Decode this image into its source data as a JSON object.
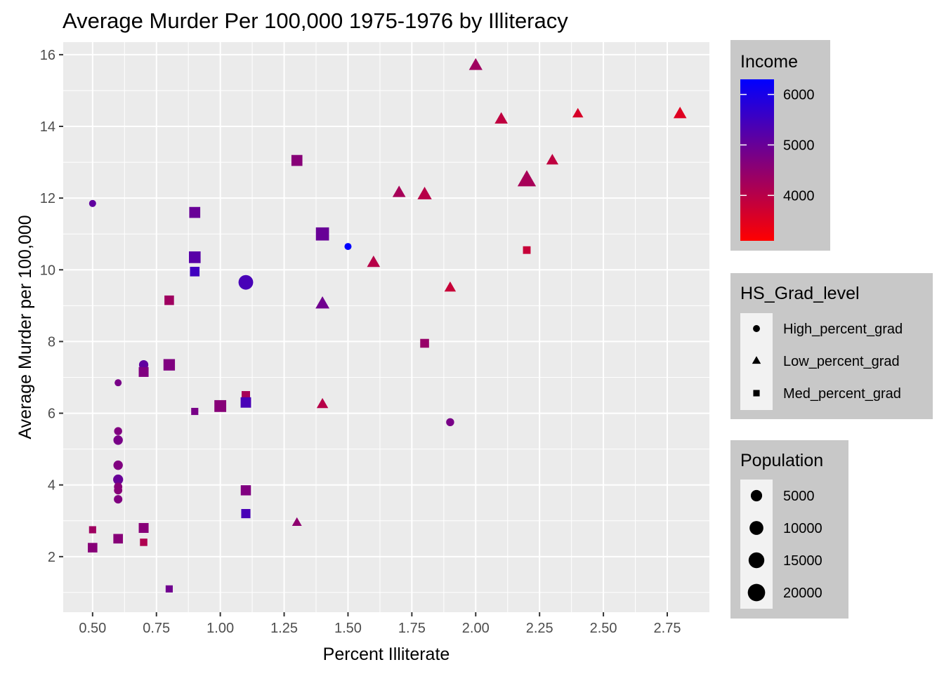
{
  "chart_data": {
    "type": "scatter",
    "title": "Average Murder Per 100,000 1975-1976 by Illiteracy",
    "xlabel": "Percent Illiterate",
    "ylabel": "Average Murder per 100,000",
    "xlim": [
      0.385,
      2.915
    ],
    "ylim": [
      0.45,
      16.35
    ],
    "x_ticks": [
      0.5,
      0.75,
      1.0,
      1.25,
      1.5,
      1.75,
      2.0,
      2.25,
      2.5,
      2.75
    ],
    "x_tick_labels": [
      "0.50",
      "0.75",
      "1.00",
      "1.25",
      "1.50",
      "1.75",
      "2.00",
      "2.25",
      "2.50",
      "2.75"
    ],
    "y_ticks": [
      2,
      4,
      6,
      8,
      10,
      12,
      14,
      16
    ],
    "y_tick_labels": [
      "2",
      "4",
      "6",
      "8",
      "10",
      "12",
      "14",
      "16"
    ],
    "grid": true,
    "legends": {
      "income": {
        "title": "Income",
        "low_color": "#ff0000",
        "high_color": "#0000ff",
        "range": [
          3100,
          6300
        ],
        "ticks": [
          4000,
          5000,
          6000
        ],
        "tick_labels": [
          "4000",
          "5000",
          "6000"
        ]
      },
      "shape": {
        "title": "HS_Grad_level",
        "entries": [
          {
            "label": "High_percent_grad",
            "shape": "circle"
          },
          {
            "label": "Low_percent_grad",
            "shape": "triangle"
          },
          {
            "label": "Med_percent_grad",
            "shape": "square"
          }
        ]
      },
      "size": {
        "title": "Population",
        "entries": [
          {
            "label": "5000",
            "value": 5000
          },
          {
            "label": "10000",
            "value": 10000
          },
          {
            "label": "15000",
            "value": 15000
          },
          {
            "label": "20000",
            "value": 20000
          }
        ]
      }
    },
    "points": [
      {
        "x": 0.5,
        "y": 11.85,
        "shape": "circle",
        "income": 5100,
        "population": 400
      },
      {
        "x": 0.5,
        "y": 2.75,
        "shape": "square",
        "income": 4300,
        "population": 800
      },
      {
        "x": 0.5,
        "y": 2.25,
        "shape": "square",
        "income": 4600,
        "population": 3500
      },
      {
        "x": 0.6,
        "y": 6.85,
        "shape": "circle",
        "income": 4800,
        "population": 400
      },
      {
        "x": 0.6,
        "y": 5.5,
        "shape": "circle",
        "income": 4700,
        "population": 1000
      },
      {
        "x": 0.6,
        "y": 5.25,
        "shape": "circle",
        "income": 4800,
        "population": 2300
      },
      {
        "x": 0.6,
        "y": 4.55,
        "shape": "circle",
        "income": 4700,
        "population": 2300
      },
      {
        "x": 0.6,
        "y": 4.15,
        "shape": "circle",
        "income": 5000,
        "population": 3000
      },
      {
        "x": 0.6,
        "y": 3.95,
        "shape": "circle",
        "income": 4600,
        "population": 1200
      },
      {
        "x": 0.6,
        "y": 3.85,
        "shape": "circle",
        "income": 4600,
        "population": 1200
      },
      {
        "x": 0.6,
        "y": 3.6,
        "shape": "circle",
        "income": 4700,
        "population": 1400
      },
      {
        "x": 0.6,
        "y": 2.5,
        "shape": "square",
        "income": 4600,
        "population": 3500
      },
      {
        "x": 0.7,
        "y": 7.35,
        "shape": "circle",
        "income": 5100,
        "population": 2200
      },
      {
        "x": 0.7,
        "y": 7.15,
        "shape": "square",
        "income": 4700,
        "population": 4000
      },
      {
        "x": 0.7,
        "y": 2.8,
        "shape": "square",
        "income": 4600,
        "population": 4000
      },
      {
        "x": 0.7,
        "y": 2.4,
        "shape": "square",
        "income": 4100,
        "population": 1000
      },
      {
        "x": 0.8,
        "y": 9.15,
        "shape": "square",
        "income": 4300,
        "population": 3500
      },
      {
        "x": 0.8,
        "y": 7.35,
        "shape": "square",
        "income": 4700,
        "population": 7000
      },
      {
        "x": 0.8,
        "y": 1.1,
        "shape": "square",
        "income": 4900,
        "population": 800
      },
      {
        "x": 0.9,
        "y": 11.6,
        "shape": "square",
        "income": 5000,
        "population": 6000
      },
      {
        "x": 0.9,
        "y": 10.35,
        "shape": "square",
        "income": 5200,
        "population": 7500
      },
      {
        "x": 0.9,
        "y": 9.95,
        "shape": "square",
        "income": 5500,
        "population": 3500
      },
      {
        "x": 0.9,
        "y": 6.05,
        "shape": "square",
        "income": 4800,
        "population": 800
      },
      {
        "x": 1.0,
        "y": 6.2,
        "shape": "square",
        "income": 4600,
        "population": 7800
      },
      {
        "x": 1.1,
        "y": 9.65,
        "shape": "circle",
        "income": 5400,
        "population": 12000
      },
      {
        "x": 1.1,
        "y": 6.5,
        "shape": "square",
        "income": 4200,
        "population": 2000
      },
      {
        "x": 1.1,
        "y": 6.3,
        "shape": "square",
        "income": 5400,
        "population": 5000
      },
      {
        "x": 1.1,
        "y": 3.85,
        "shape": "square",
        "income": 4700,
        "population": 4500
      },
      {
        "x": 1.1,
        "y": 3.2,
        "shape": "square",
        "income": 5400,
        "population": 3000
      },
      {
        "x": 1.3,
        "y": 13.05,
        "shape": "square",
        "income": 4600,
        "population": 6000
      },
      {
        "x": 1.3,
        "y": 2.95,
        "shape": "triangle",
        "income": 4500,
        "population": 800
      },
      {
        "x": 1.4,
        "y": 11.0,
        "shape": "square",
        "income": 5000,
        "population": 11000
      },
      {
        "x": 1.4,
        "y": 9.05,
        "shape": "triangle",
        "income": 4900,
        "population": 4500
      },
      {
        "x": 1.4,
        "y": 6.25,
        "shape": "triangle",
        "income": 4000,
        "population": 2000
      },
      {
        "x": 1.5,
        "y": 10.65,
        "shape": "circle",
        "income": 6300,
        "population": 400
      },
      {
        "x": 1.6,
        "y": 10.2,
        "shape": "triangle",
        "income": 4000,
        "population": 3500
      },
      {
        "x": 1.7,
        "y": 12.15,
        "shape": "triangle",
        "income": 4200,
        "population": 3500
      },
      {
        "x": 1.8,
        "y": 12.1,
        "shape": "triangle",
        "income": 4000,
        "population": 5000
      },
      {
        "x": 1.8,
        "y": 7.95,
        "shape": "square",
        "income": 4400,
        "population": 2500
      },
      {
        "x": 1.9,
        "y": 9.5,
        "shape": "triangle",
        "income": 3800,
        "population": 2000
      },
      {
        "x": 1.9,
        "y": 5.75,
        "shape": "circle",
        "income": 4800,
        "population": 1000
      },
      {
        "x": 2.0,
        "y": 15.7,
        "shape": "triangle",
        "income": 4300,
        "population": 4000
      },
      {
        "x": 2.1,
        "y": 14.2,
        "shape": "triangle",
        "income": 3900,
        "population": 3500
      },
      {
        "x": 2.2,
        "y": 12.5,
        "shape": "triangle",
        "income": 4200,
        "population": 12000
      },
      {
        "x": 2.2,
        "y": 10.55,
        "shape": "square",
        "income": 3800,
        "population": 1200
      },
      {
        "x": 2.3,
        "y": 13.05,
        "shape": "triangle",
        "income": 3900,
        "population": 2500
      },
      {
        "x": 2.4,
        "y": 14.35,
        "shape": "triangle",
        "income": 3600,
        "population": 1500
      },
      {
        "x": 2.8,
        "y": 14.35,
        "shape": "triangle",
        "income": 3500,
        "population": 3500
      }
    ]
  }
}
